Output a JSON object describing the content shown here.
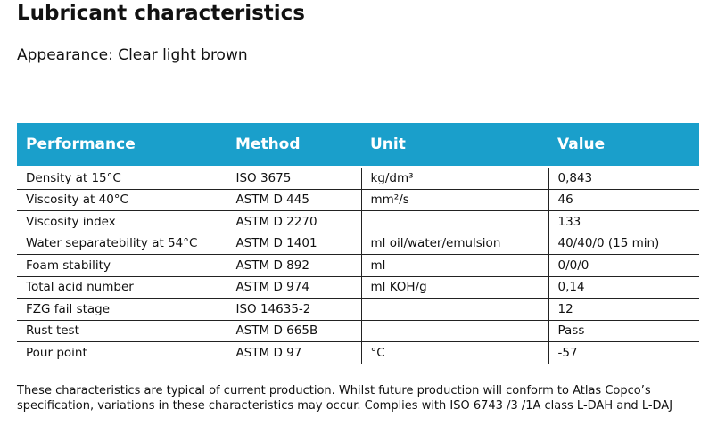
{
  "header": {
    "title": "Lubricant characteristics",
    "appearance": "Appearance: Clear light brown"
  },
  "table": {
    "columns": [
      "Performance",
      "Method",
      "Unit",
      "Value"
    ],
    "rows": [
      [
        "Density at 15°C",
        "ISO 3675",
        "kg/dm³",
        "0,843"
      ],
      [
        "Viscosity at 40°C",
        "ASTM D 445",
        "mm²/s",
        "46"
      ],
      [
        "Viscosity index",
        "ASTM D 2270",
        null,
        "133"
      ],
      [
        "Water separatebility at 54°C",
        "ASTM D 1401",
        "ml oil/water/emulsion",
        "40/40/0 (15 min)"
      ],
      [
        "Foam stability",
        "ASTM D 892",
        "ml",
        "0/0/0"
      ],
      [
        "Total acid number",
        "ASTM D 974",
        "ml KOH/g",
        "0,14"
      ],
      [
        "FZG fail stage",
        "ISO 14635-2",
        null,
        "12"
      ],
      [
        "Rust test",
        "ASTM D 665B",
        null,
        "Pass"
      ],
      [
        "Pour point",
        "ASTM D 97",
        "°C",
        "-57"
      ]
    ]
  },
  "footer": {
    "note": "These characteristics are typical of current production. Whilst future production will conform to Atlas Copco’s specification, variations in these characteristics may occur. Complies with ISO 6743 /3 /1A class L-DAH and L-DAJ"
  }
}
